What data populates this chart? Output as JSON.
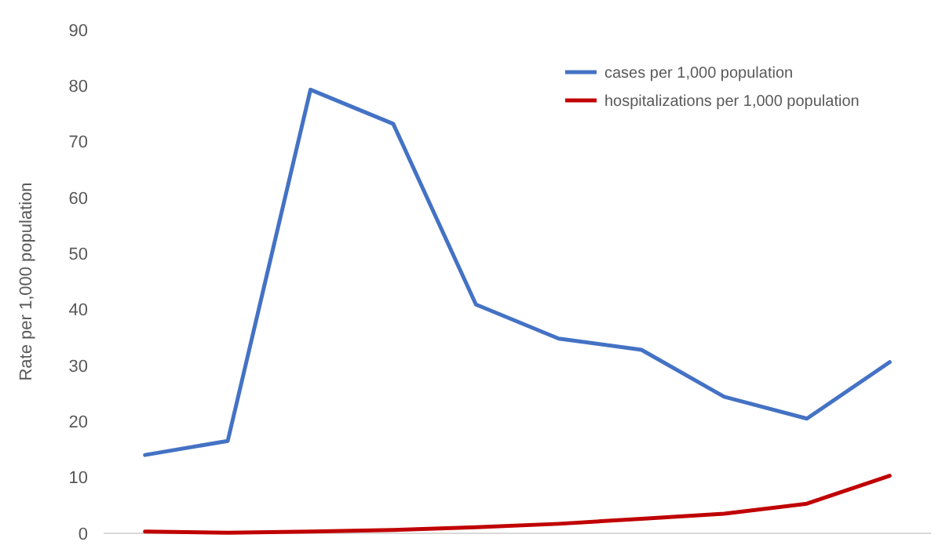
{
  "chart_data": {
    "type": "line",
    "ylabel": "Rate per 1,000 population",
    "categories": [
      null,
      null,
      null,
      null,
      null,
      null,
      null,
      null,
      null,
      null
    ],
    "series": [
      {
        "name": "cases per 1,000 population",
        "color": "#4472c4",
        "values": [
          14.0,
          16.5,
          79.3,
          73.2,
          40.9,
          34.8,
          32.8,
          24.4,
          20.5,
          30.6
        ]
      },
      {
        "name": "hospitalizations per 1,000 population",
        "color": "#c00000",
        "values": [
          0.3,
          0.1,
          0.3,
          0.6,
          1.1,
          1.7,
          2.6,
          3.5,
          5.3,
          10.3
        ]
      }
    ],
    "ylim": [
      0,
      90
    ],
    "yticks": [
      0,
      10,
      20,
      30,
      40,
      50,
      60,
      70,
      80,
      90
    ],
    "grid": false,
    "legend": "top right",
    "marker": "none",
    "line_style": "solid"
  }
}
